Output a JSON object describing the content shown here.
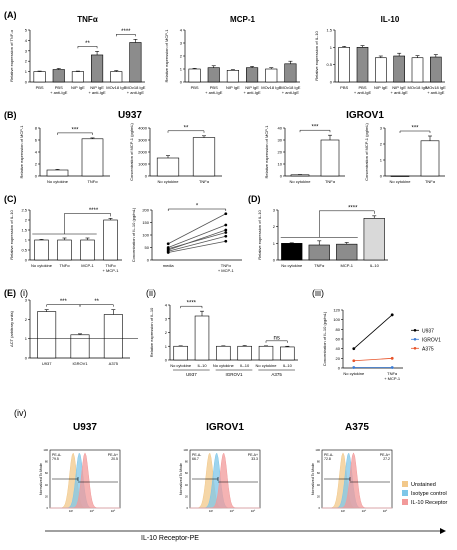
{
  "figure": {
    "panel_labels": {
      "A": "(A)",
      "B": "(B)",
      "C": "(C)",
      "D": "(D)",
      "E": "(E)",
      "Ei": "(i)",
      "Eii": "(ii)",
      "Eiii": "(iii)",
      "Eiv": "(iv)"
    },
    "flow_xlabel": "IL-10 Receptor-PE"
  },
  "chart_data": [
    {
      "id": "A1",
      "type": "bar",
      "title": "TNFα",
      "ylabel": "Relative expression of TNF-α",
      "ylim": [
        0,
        5
      ],
      "yticks": [
        0,
        1,
        2,
        3,
        4,
        5
      ],
      "categories": [
        "PBS",
        "PBS + anti-IgE",
        "NIP IgE",
        "NIP IgE + anti-IgE",
        "MOv18 IgE",
        "MOv18 IgE + anti-IgE"
      ],
      "values": [
        1.0,
        1.2,
        1.0,
        2.6,
        1.0,
        3.8
      ],
      "errors": [
        0.05,
        0.1,
        0.05,
        0.35,
        0.1,
        0.3
      ],
      "fills": [
        "#ffffff",
        "#8c8c8c",
        "#ffffff",
        "#8c8c8c",
        "#ffffff",
        "#8c8c8c"
      ],
      "significance": [
        {
          "from": 2,
          "to": 3,
          "label": "**"
        },
        {
          "from": 4,
          "to": 5,
          "label": "****"
        }
      ]
    },
    {
      "id": "A2",
      "type": "bar",
      "title": "MCP-1",
      "ylabel": "Relative expression of MCP-1",
      "ylim": [
        0,
        4
      ],
      "yticks": [
        0,
        1,
        2,
        3,
        4
      ],
      "categories": [
        "PBS",
        "PBS + anti-IgE",
        "NIP IgE",
        "NIP IgE + anti-IgE",
        "MOv18 IgE",
        "MOv18 IgE + anti-IgE"
      ],
      "values": [
        1.0,
        1.1,
        0.9,
        1.1,
        1.0,
        1.4
      ],
      "errors": [
        0.05,
        0.15,
        0.05,
        0.1,
        0.1,
        0.2
      ],
      "fills": [
        "#ffffff",
        "#8c8c8c",
        "#ffffff",
        "#8c8c8c",
        "#ffffff",
        "#8c8c8c"
      ],
      "significance": []
    },
    {
      "id": "A3",
      "type": "bar",
      "title": "IL-10",
      "ylabel": "Relative expression of IL-10",
      "ylim": [
        0,
        1.5
      ],
      "yticks": [
        0,
        0.5,
        1,
        1.5
      ],
      "categories": [
        "PBS",
        "PBS + anti-IgE",
        "NIP IgE",
        "NIP IgE + anti-IgE",
        "MOv18 IgE",
        "MOv18 IgE + anti-IgE"
      ],
      "values": [
        1.0,
        1.0,
        0.7,
        0.75,
        0.7,
        0.72
      ],
      "errors": [
        0.03,
        0.05,
        0.05,
        0.08,
        0.06,
        0.07
      ],
      "fills": [
        "#ffffff",
        "#8c8c8c",
        "#ffffff",
        "#8c8c8c",
        "#ffffff",
        "#8c8c8c"
      ],
      "significance": []
    },
    {
      "id": "B1",
      "type": "bar",
      "group_title": "U937",
      "ylabel": "Relative expression of MCP-1",
      "ylim": [
        0,
        8
      ],
      "yticks": [
        0,
        2,
        4,
        6,
        8
      ],
      "categories": [
        "No cytokine",
        "TNFα"
      ],
      "values": [
        1.0,
        6.2
      ],
      "errors": [
        0.1,
        0.15
      ],
      "fills": [
        "#ffffff",
        "#ffffff"
      ],
      "significance": [
        {
          "from": 0,
          "to": 1,
          "label": "***"
        }
      ]
    },
    {
      "id": "B2",
      "type": "bar",
      "ylabel": "Concentration of MCP-1 (pg/mL)",
      "ylim": [
        0,
        4000
      ],
      "yticks": [
        0,
        1000,
        2000,
        3000,
        4000
      ],
      "categories": [
        "No cytokine",
        "TNFα"
      ],
      "values": [
        1500,
        3200
      ],
      "errors": [
        200,
        150
      ],
      "fills": [
        "#ffffff",
        "#ffffff"
      ],
      "significance": [
        {
          "from": 0,
          "to": 1,
          "label": "**"
        }
      ]
    },
    {
      "id": "B3",
      "type": "bar",
      "group_title": "IGROV1",
      "ylabel": "Relative expression of MCP-1",
      "ylim": [
        0,
        40
      ],
      "yticks": [
        0,
        10,
        20,
        30,
        40
      ],
      "categories": [
        "No cytokine",
        "TNFα"
      ],
      "values": [
        1.0,
        30.0
      ],
      "errors": [
        0.2,
        4
      ],
      "fills": [
        "#ffffff",
        "#ffffff"
      ],
      "significance": [
        {
          "from": 0,
          "to": 1,
          "label": "***"
        }
      ]
    },
    {
      "id": "B4",
      "type": "bar",
      "ylabel": "Concentration of MCP-1 (pg/mL)",
      "ylim": [
        0,
        3
      ],
      "yticks": [
        0,
        1,
        2,
        3
      ],
      "categories": [
        "No cytokine",
        "TNFα"
      ],
      "values": [
        0,
        2.2
      ],
      "errors": [
        0,
        0.3
      ],
      "fills": [
        "#ffffff",
        "#ffffff"
      ],
      "significance": [
        {
          "from": 0,
          "to": 1,
          "label": "***"
        }
      ]
    },
    {
      "id": "C1",
      "type": "bar",
      "ylabel": "Relative expression of IL-10",
      "ylim": [
        0,
        2.5
      ],
      "yticks": [
        0,
        0.5,
        1,
        1.5,
        2,
        2.5
      ],
      "categories": [
        "No cytokine",
        "TNFα",
        "MCP-1",
        "TNFα + MCP-1"
      ],
      "values": [
        1.0,
        1.0,
        1.0,
        2.0
      ],
      "errors": [
        0.03,
        0.1,
        0.1,
        0.08
      ],
      "fills": [
        "#ffffff",
        "#ffffff",
        "#ffffff",
        "#ffffff"
      ],
      "significance": [
        {
          "from": 0,
          "to": 3,
          "label": "****",
          "bracket": "group"
        }
      ]
    },
    {
      "id": "C2",
      "type": "line",
      "ylabel": "Concentration of IL-10 (pg/mL)",
      "ylim": [
        0,
        200
      ],
      "yticks": [
        0,
        50,
        100,
        150,
        200
      ],
      "categories": [
        "media",
        "TNFα + MCP-1"
      ],
      "series": [
        {
          "values": [
            65,
            185
          ]
        },
        {
          "values": [
            50,
            140
          ]
        },
        {
          "values": [
            40,
            120
          ]
        },
        {
          "values": [
            35,
            95
          ]
        },
        {
          "values": [
            30,
            75
          ]
        },
        {
          "values": [
            45,
            110
          ]
        }
      ],
      "significance": [
        {
          "from": 0,
          "to": 1,
          "label": "*"
        }
      ]
    },
    {
      "id": "D",
      "type": "bar",
      "ylabel": "Relative expression of IL-10",
      "ylim": [
        0,
        3
      ],
      "yticks": [
        0,
        1,
        2,
        3
      ],
      "categories": [
        "No cytokine",
        "TNFα",
        "MCP-1",
        "IL-10"
      ],
      "values": [
        1.0,
        0.9,
        0.95,
        2.5
      ],
      "errors": [
        0.03,
        0.25,
        0.1,
        0.15
      ],
      "fills": [
        "#000000",
        "#8c8c8c",
        "#8c8c8c",
        "#d9d9d9"
      ],
      "significance": [
        {
          "from": 0,
          "to": 3,
          "label": "****",
          "bracket": "group"
        }
      ]
    },
    {
      "id": "Ei",
      "type": "bar",
      "ylabel": "ΔCT (arbitrary units)",
      "ylim": [
        0,
        3
      ],
      "yticks": [
        0,
        1,
        2,
        3
      ],
      "categories": [
        "U937",
        "IGROV1",
        "A375"
      ],
      "values": [
        2.4,
        1.2,
        2.25
      ],
      "errors": [
        0.1,
        0.05,
        0.25
      ],
      "fills": [
        "#ffffff",
        "#ffffff",
        "#ffffff"
      ],
      "reference_line": 1,
      "significance": [
        {
          "from": 0,
          "to": 1,
          "label": "***"
        },
        {
          "from": 1,
          "to": 2,
          "label": "**"
        }
      ]
    },
    {
      "id": "Eii",
      "type": "bar",
      "ylabel": "Relative expression of IL-10",
      "ylim": [
        0,
        4
      ],
      "yticks": [
        0,
        1,
        2,
        3,
        4
      ],
      "categories": [
        "No cytokine",
        "IL-10",
        "No cytokine",
        "IL-10",
        "No cytokine",
        "IL-10"
      ],
      "groups": [
        "U937",
        "IGROV1",
        "A375"
      ],
      "values": [
        1.0,
        3.2,
        1.0,
        1.0,
        1.0,
        0.95
      ],
      "errors": [
        0.03,
        0.35,
        0.03,
        0.05,
        0.03,
        0.05
      ],
      "fills": [
        "#ffffff",
        "#ffffff",
        "#ffffff",
        "#ffffff",
        "#ffffff",
        "#ffffff"
      ],
      "significance": [
        {
          "from": 0,
          "to": 1,
          "label": "****"
        },
        {
          "from": 4,
          "to": 5,
          "label": "ns"
        }
      ]
    },
    {
      "id": "Eiii",
      "type": "line",
      "ylabel": "Concentration of IL-10 (pg/mL)",
      "ylim": [
        0,
        120
      ],
      "yticks": [
        0,
        20,
        40,
        60,
        80,
        100,
        120
      ],
      "categories": [
        "No cytokine",
        "TNFα + MCP-1"
      ],
      "series": [
        {
          "name": "U937",
          "color": "#000000",
          "values": [
            40,
            110
          ]
        },
        {
          "name": "IGROV1",
          "color": "#3a7bd5",
          "values": [
            1,
            1
          ]
        },
        {
          "name": "A375",
          "color": "#e8542a",
          "values": [
            15,
            20
          ]
        }
      ]
    },
    {
      "id": "Eiv1",
      "type": "area",
      "title": "U937",
      "ylabel": "Normalized To Mode",
      "gate_left": "PE-A-\n79.5",
      "gate_right": "PE-A+\n20.5"
    },
    {
      "id": "Eiv2",
      "type": "area",
      "title": "IGROV1",
      "ylabel": "Normalized To Mode",
      "gate_left": "PE-A-\n66.7",
      "gate_right": "PE-A+\n33.3"
    },
    {
      "id": "Eiv3",
      "type": "area",
      "title": "A375",
      "ylabel": "Normalized To Mode",
      "gate_left": "PE-A-\n72.8",
      "gate_right": "PE-A+\n27.2"
    }
  ],
  "flow_legend": [
    {
      "label": "Unstained",
      "color": "#f2c88a"
    },
    {
      "label": "Isotype control",
      "color": "#7ec6e8"
    },
    {
      "label": "IL-10 Receptor",
      "color": "#f29a9a"
    }
  ]
}
